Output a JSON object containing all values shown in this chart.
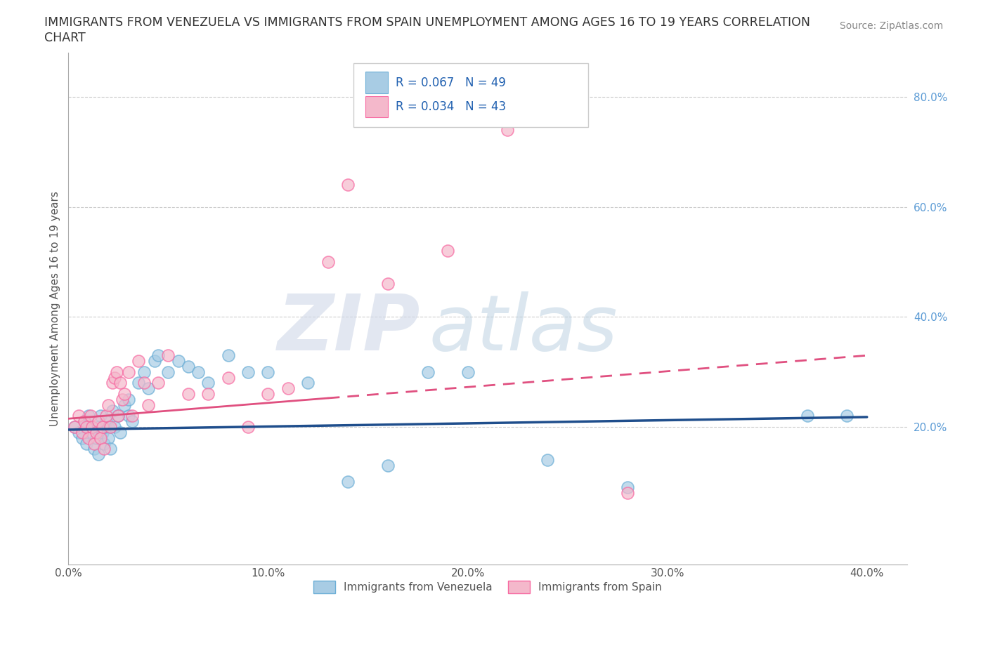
{
  "title_line1": "IMMIGRANTS FROM VENEZUELA VS IMMIGRANTS FROM SPAIN UNEMPLOYMENT AMONG AGES 16 TO 19 YEARS CORRELATION",
  "title_line2": "CHART",
  "source": "Source: ZipAtlas.com",
  "ylabel": "Unemployment Among Ages 16 to 19 years",
  "xlim": [
    0.0,
    0.42
  ],
  "ylim": [
    -0.05,
    0.88
  ],
  "xticks": [
    0.0,
    0.1,
    0.2,
    0.3,
    0.4
  ],
  "xtick_labels": [
    "0.0%",
    "10.0%",
    "20.0%",
    "30.0%",
    "40.0%"
  ],
  "right_yticks": [
    0.2,
    0.4,
    0.6,
    0.8
  ],
  "right_ytick_labels": [
    "20.0%",
    "40.0%",
    "60.0%",
    "80.0%"
  ],
  "watermark_zip": "ZIP",
  "watermark_atlas": "atlas",
  "blue_color": "#a8cce4",
  "pink_color": "#f4b8cb",
  "blue_edge": "#6baed6",
  "pink_edge": "#f768a1",
  "trend_blue": "#1f4e8c",
  "trend_pink": "#e05080",
  "legend_R1": "R = 0.067",
  "legend_N1": "N = 49",
  "legend_R2": "R = 0.034",
  "legend_N2": "N = 43",
  "legend_label1": "Immigrants from Venezuela",
  "legend_label2": "Immigrants from Spain",
  "venezuela_x": [
    0.003,
    0.005,
    0.007,
    0.008,
    0.009,
    0.01,
    0.01,
    0.012,
    0.013,
    0.014,
    0.015,
    0.015,
    0.016,
    0.017,
    0.018,
    0.019,
    0.02,
    0.02,
    0.021,
    0.022,
    0.023,
    0.025,
    0.026,
    0.028,
    0.03,
    0.03,
    0.032,
    0.035,
    0.038,
    0.04,
    0.043,
    0.045,
    0.05,
    0.055,
    0.06,
    0.065,
    0.07,
    0.08,
    0.09,
    0.1,
    0.12,
    0.14,
    0.16,
    0.18,
    0.2,
    0.24,
    0.28,
    0.37,
    0.39
  ],
  "venezuela_y": [
    0.2,
    0.19,
    0.18,
    0.21,
    0.17,
    0.2,
    0.22,
    0.19,
    0.16,
    0.18,
    0.2,
    0.15,
    0.22,
    0.19,
    0.17,
    0.21,
    0.2,
    0.18,
    0.16,
    0.23,
    0.2,
    0.22,
    0.19,
    0.24,
    0.25,
    0.22,
    0.21,
    0.28,
    0.3,
    0.27,
    0.32,
    0.33,
    0.3,
    0.32,
    0.31,
    0.3,
    0.28,
    0.33,
    0.3,
    0.3,
    0.28,
    0.1,
    0.13,
    0.3,
    0.3,
    0.14,
    0.09,
    0.22,
    0.22
  ],
  "spain_x": [
    0.003,
    0.005,
    0.007,
    0.008,
    0.009,
    0.01,
    0.011,
    0.012,
    0.013,
    0.014,
    0.015,
    0.016,
    0.017,
    0.018,
    0.019,
    0.02,
    0.021,
    0.022,
    0.023,
    0.024,
    0.025,
    0.026,
    0.027,
    0.028,
    0.03,
    0.032,
    0.035,
    0.038,
    0.04,
    0.045,
    0.05,
    0.06,
    0.07,
    0.08,
    0.09,
    0.1,
    0.11,
    0.13,
    0.14,
    0.16,
    0.19,
    0.22,
    0.28
  ],
  "spain_y": [
    0.2,
    0.22,
    0.19,
    0.21,
    0.2,
    0.18,
    0.22,
    0.2,
    0.17,
    0.19,
    0.21,
    0.18,
    0.2,
    0.16,
    0.22,
    0.24,
    0.2,
    0.28,
    0.29,
    0.3,
    0.22,
    0.28,
    0.25,
    0.26,
    0.3,
    0.22,
    0.32,
    0.28,
    0.24,
    0.28,
    0.33,
    0.26,
    0.26,
    0.29,
    0.2,
    0.26,
    0.27,
    0.5,
    0.64,
    0.46,
    0.52,
    0.74,
    0.08
  ],
  "blue_trend_x0": 0.0,
  "blue_trend_y0": 0.195,
  "blue_trend_x1": 0.4,
  "blue_trend_y1": 0.218,
  "pink_trend_x0": 0.0,
  "pink_trend_y0": 0.215,
  "pink_trend_x1": 0.4,
  "pink_trend_y1": 0.33
}
